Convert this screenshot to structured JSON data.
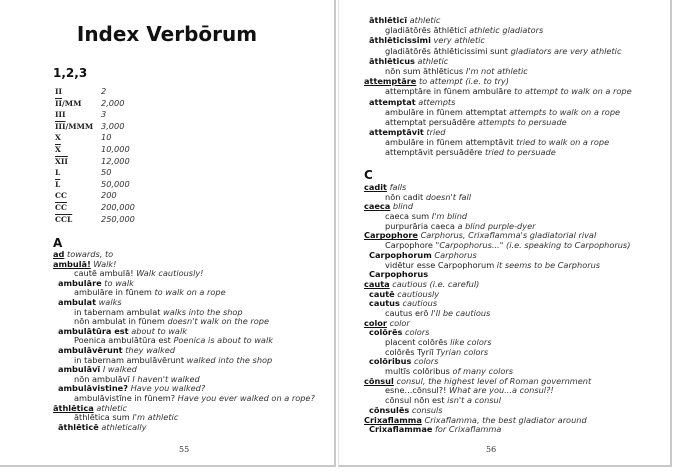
{
  "left_page": {
    "title": "Index Verbōrum",
    "section_numbers": "1,2,3",
    "numerals": [
      {
        "over": "",
        "plain": "II",
        "value": "2"
      },
      {
        "over": "II",
        "plain": "/MM",
        "value": "2,000"
      },
      {
        "over": "",
        "plain": "III",
        "value": "3"
      },
      {
        "over": "III",
        "plain": "/MMM",
        "value": "3,000"
      },
      {
        "over": "",
        "plain": "X",
        "value": "10"
      },
      {
        "over": "X",
        "plain": "",
        "value": "10,000"
      },
      {
        "over": "XII",
        "plain": "",
        "value": "12,000"
      },
      {
        "over": "",
        "plain": "L",
        "value": "50"
      },
      {
        "over": "L",
        "plain": "",
        "value": "50,000"
      },
      {
        "over": "",
        "plain": "CC",
        "value": "200"
      },
      {
        "over": "CC",
        "plain": "",
        "value": "200,000"
      },
      {
        "over": "CCL",
        "plain": "",
        "value": "250,000"
      }
    ],
    "section_a": "A",
    "entries": [
      {
        "l": 0,
        "la": "ad",
        "en": "towards, to"
      },
      {
        "l": 0,
        "la": "ambulā!",
        "en": "Walk!"
      },
      {
        "l": 2,
        "la": "cautē ambulā!",
        "en": "Walk cautiously!"
      },
      {
        "l": 1,
        "la": "ambulāre",
        "en": "to walk"
      },
      {
        "l": 2,
        "la": "ambulāre in fūnem",
        "en": "to walk on a rope"
      },
      {
        "l": 1,
        "la": "ambulat",
        "en": "walks"
      },
      {
        "l": 2,
        "la": "in tabernam ambulat",
        "en": "walks into the shop"
      },
      {
        "l": 2,
        "la": "nōn ambulat in fūnem",
        "en": "doesn't walk on the rope"
      },
      {
        "l": 1,
        "la": "ambulātūra est",
        "en": "about to walk"
      },
      {
        "l": 2,
        "la": "Poenica ambulātūra est",
        "en": "Poenica is about to walk"
      },
      {
        "l": 1,
        "la": "ambulāvērunt",
        "en": "they walked"
      },
      {
        "l": 2,
        "la": "in tabernam ambulāvērunt",
        "en": "walked into the shop"
      },
      {
        "l": 1,
        "la": "ambulāvī",
        "en": "I walked"
      },
      {
        "l": 2,
        "la": "nōn ambulāvī",
        "en": "I haven't walked"
      },
      {
        "l": 1,
        "la": "ambulāvistine?",
        "en": "Have you walked?"
      },
      {
        "l": 2,
        "la": "ambulāvistīne in fūnem?",
        "en": "Have you ever walked on a rope?"
      },
      {
        "l": 0,
        "la": "āthlētica",
        "en": "athletic"
      },
      {
        "l": 2,
        "la": "āthlētica sum",
        "en": "I'm athletic"
      },
      {
        "l": 1,
        "la": "āthlēticē",
        "en": "athletically"
      }
    ],
    "page_number": "55"
  },
  "right_page": {
    "entries_top": [
      {
        "l": 1,
        "la": "āthlēticī",
        "en": "athletic"
      },
      {
        "l": 2,
        "la": "gladiātōrēs āthlēticī",
        "en": "athletic gladiators"
      },
      {
        "l": 1,
        "la": "āthlēticissimi",
        "en": "very athletic"
      },
      {
        "l": 2,
        "la": "gladiātōrēs āthlēticissimi sunt",
        "en": "gladiators are very athletic"
      },
      {
        "l": 1,
        "la": "āthlēticus",
        "en": "athletic"
      },
      {
        "l": 2,
        "la": "nōn sum āthlēticus",
        "en": "I'm not athletic"
      },
      {
        "l": 0,
        "la": "attemptāre",
        "en": "to attempt (i.e. to try)"
      },
      {
        "l": 2,
        "la": "attemptāre in fūnem ambulāre",
        "en": "to attempt to walk on a rope"
      },
      {
        "l": 1,
        "la": "attemptat",
        "en": "attempts"
      },
      {
        "l": 2,
        "la": "ambulāre in fūnem attemptat",
        "en": "attempts to walk on a rope"
      },
      {
        "l": 2,
        "la": "attemptat persuādēre",
        "en": "attempts to persuade"
      },
      {
        "l": 1,
        "la": "attemptāvit",
        "en": "tried"
      },
      {
        "l": 2,
        "la": "ambulāre in fūnem attemptāvit",
        "en": "tried to walk on a rope"
      },
      {
        "l": 2,
        "la": "attemptāvit persuādēre",
        "en": "tried to persuade"
      }
    ],
    "section_c": "C",
    "entries_c": [
      {
        "l": 0,
        "la": "cadit",
        "en": "falls"
      },
      {
        "l": 2,
        "la": "nōn cadit",
        "en": "doesn't fall"
      },
      {
        "l": 0,
        "la": "caeca",
        "en": "blind"
      },
      {
        "l": 2,
        "la": "caeca sum",
        "en": "I'm blind"
      },
      {
        "l": 2,
        "la": "purpurāria caeca",
        "en": "a blind purple-dyer"
      },
      {
        "l": 0,
        "la": "Carpophore",
        "en": "Carphorus, Crixaflamma's gladiatorial rival"
      },
      {
        "l": 2,
        "la": "Carpophore",
        "en": "\"Carpophorus...\" (i.e. speaking to Carpophorus)"
      },
      {
        "l": 1,
        "la": "Carpophorum",
        "en": "Carphorus"
      },
      {
        "l": 2,
        "la": "vidētur esse Carpophorum",
        "en": "it seems to be Carphorus"
      },
      {
        "l": 1,
        "la": "Carpophorus",
        "en": ""
      },
      {
        "l": 0,
        "la": "cauta",
        "en": "cautious (i.e. careful)"
      },
      {
        "l": 1,
        "la": "cautē",
        "en": "cautiously"
      },
      {
        "l": 1,
        "la": "cautus",
        "en": "cautious"
      },
      {
        "l": 2,
        "la": "cautus erō",
        "en": "I'll be cautious"
      },
      {
        "l": 0,
        "la": "color",
        "en": "color"
      },
      {
        "l": 1,
        "la": "colōrēs",
        "en": "colors"
      },
      {
        "l": 2,
        "la": "placent colōrēs",
        "en": "like colors"
      },
      {
        "l": 2,
        "la": "colōrēs Tyriī",
        "en": "Tyrian colors"
      },
      {
        "l": 1,
        "la": "colōribus",
        "en": "colors"
      },
      {
        "l": 2,
        "la": "multīs colōribus",
        "en": "of many colors"
      },
      {
        "l": 0,
        "la": "cōnsul",
        "en": "consul, the highest level of Roman government"
      },
      {
        "l": 2,
        "la": "esne...cōnsul?!",
        "en": "What are you...a consul?!"
      },
      {
        "l": 2,
        "la": "cōnsul nōn est",
        "en": "isn't a consul"
      },
      {
        "l": 1,
        "la": "cōnsulēs",
        "en": "consuls"
      },
      {
        "l": 0,
        "la": "Crixaflamma",
        "en": "Crixaflamma, the best gladiator around"
      },
      {
        "l": 1,
        "la": "Crixaflammae",
        "en": "for Crixaflamma"
      }
    ],
    "page_number": "56"
  }
}
